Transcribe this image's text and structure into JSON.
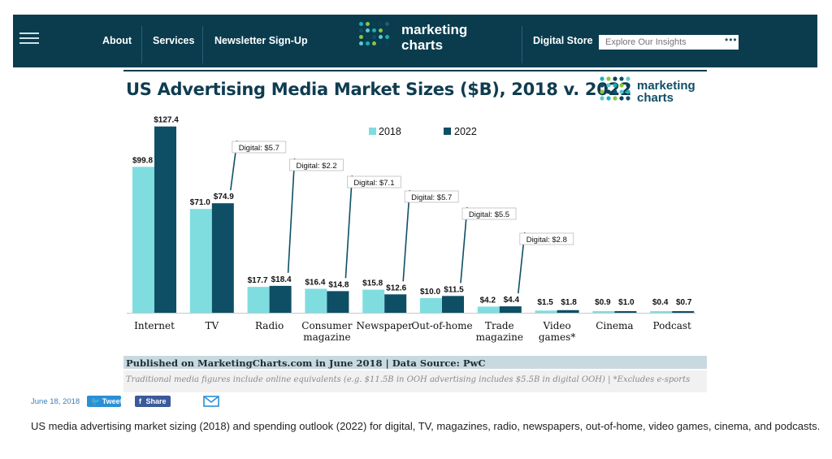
{
  "nav": {
    "links": [
      "About",
      "Services",
      "Newsletter Sign-Up"
    ],
    "logo": [
      "marketing",
      "charts"
    ],
    "store": "Digital Store",
    "search_placeholder": "Explore Our Insights",
    "search_more": "•••"
  },
  "colors": {
    "nav_bg": "#0a3c4e",
    "series_2018": "#7fdde0",
    "series_2022": "#0f4f66",
    "logo_dots": [
      "#1ab0b8",
      "#0f4f66",
      "#8bc53f",
      "#5fc7d0",
      "#0b3f55"
    ]
  },
  "chart_data": {
    "type": "bar",
    "title": "US Advertising Media Market Sizes ($B), 2018 v. 2022",
    "logo": [
      "marketing",
      "charts"
    ],
    "legend_position": "top-center",
    "categories": [
      "Internet",
      "TV",
      "Radio",
      "Consumer magazine",
      "Newspaper",
      "Out-of-home",
      "Trade magazine",
      "Video games*",
      "Cinema",
      "Podcast"
    ],
    "series": [
      {
        "name": "2018",
        "values": [
          99.8,
          71.0,
          17.7,
          16.4,
          15.8,
          10.0,
          4.2,
          1.5,
          0.9,
          0.4
        ]
      },
      {
        "name": "2022",
        "values": [
          127.4,
          74.9,
          18.4,
          14.8,
          12.6,
          11.5,
          4.4,
          1.8,
          1.0,
          0.7
        ]
      }
    ],
    "value_labels_2018": [
      "$99.8",
      "$71.0",
      "$17.7",
      "$16.4",
      "$15.8",
      "$10.0",
      "$4.2",
      "$1.5",
      "$0.9",
      "$0.4"
    ],
    "value_labels_2022": [
      "$127.4",
      "$74.9",
      "$18.4",
      "$14.8",
      "$12.6",
      "$11.5",
      "$4.4",
      "$1.8",
      "$1.0",
      "$0.7"
    ],
    "digital_annotations": [
      {
        "category": "TV",
        "label": "Digital: $5.7"
      },
      {
        "category": "Radio",
        "label": "Digital: $2.2"
      },
      {
        "category": "Consumer magazine",
        "label": "Digital: $7.1"
      },
      {
        "category": "Newspaper",
        "label": "Digital: $5.7"
      },
      {
        "category": "Out-of-home",
        "label": "Digital: $5.5"
      },
      {
        "category": "Trade magazine",
        "label": "Digital: $2.8"
      }
    ],
    "source": "Published on MarketingCharts.com in June 2018 | Data Source: PwC",
    "note": "Traditional media figures include online equivalents (e.g. $11.5B in OOH advertising includes $5.5B in digital OOH) | *Excludes e-sports",
    "ylim": [
      0,
      130
    ],
    "grid": false
  },
  "share": {
    "date": "June 18, 2018",
    "tweet": "Tweet",
    "share": "Share"
  },
  "caption": "US media advertising market sizing (2018) and spending outlook (2022) for digital, TV, magazines, radio, newspapers, out-of-home, video games, cinema, and podcasts."
}
